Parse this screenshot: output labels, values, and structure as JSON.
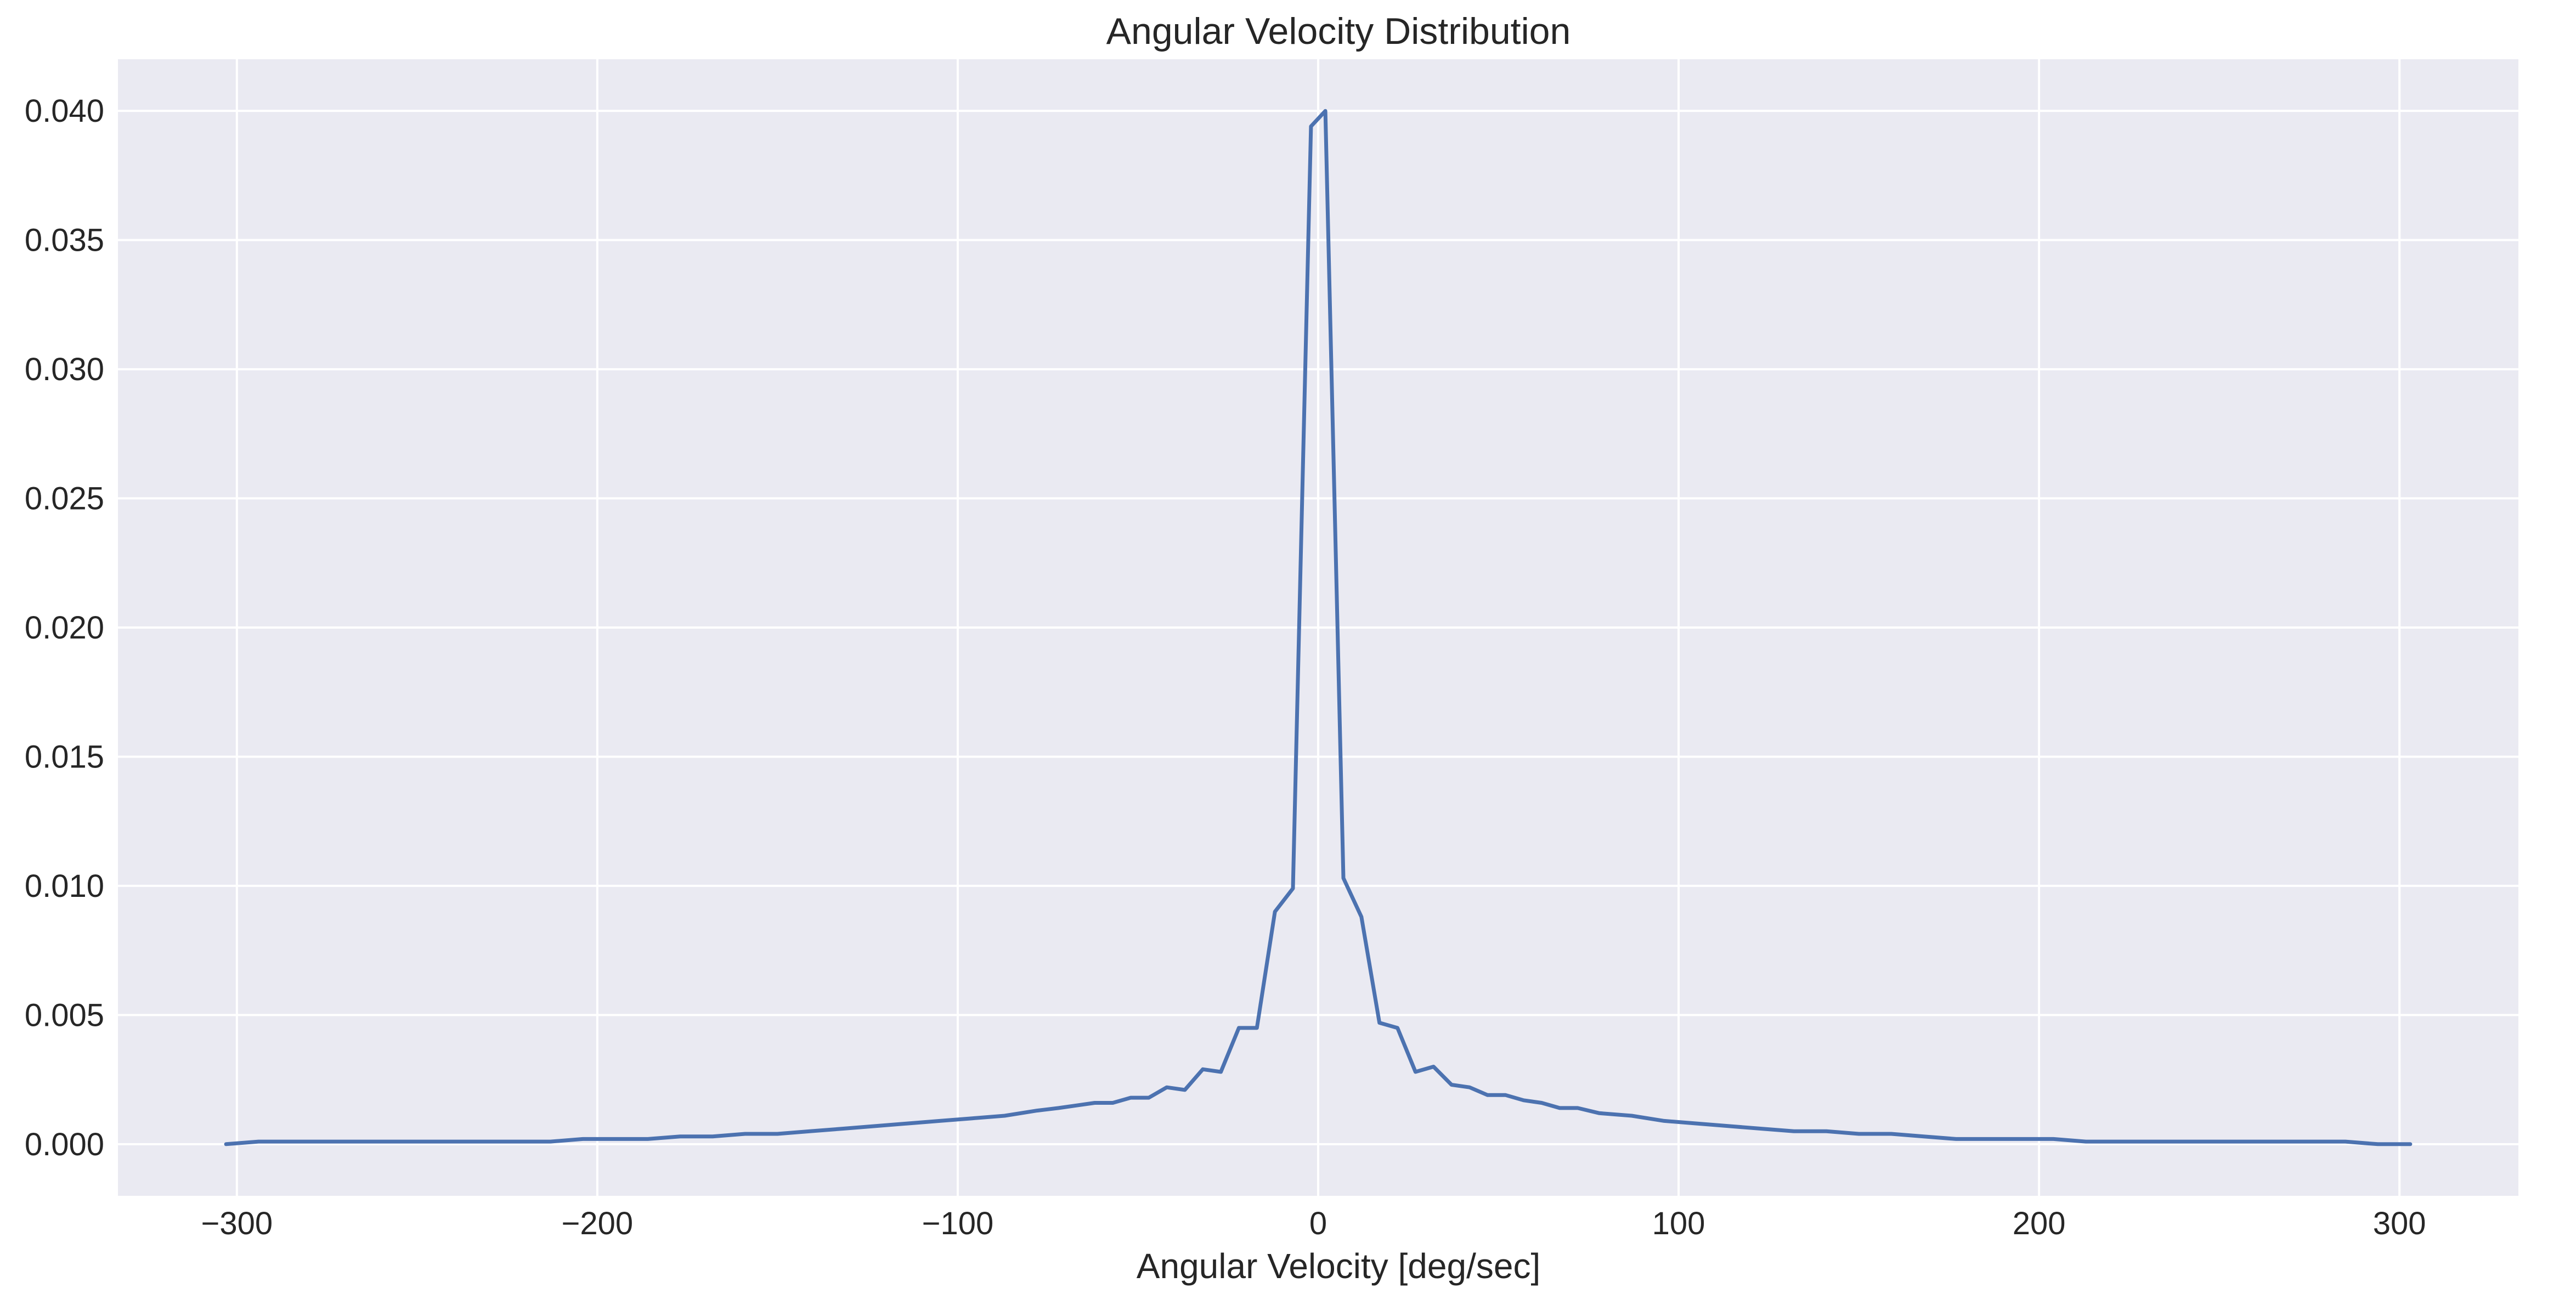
{
  "chart_data": {
    "type": "line",
    "title": "Angular Velocity Distribution",
    "xlabel": "Angular Velocity [deg/sec]",
    "ylabel": "",
    "xlim": [
      -333,
      333
    ],
    "ylim": [
      -0.002,
      0.042
    ],
    "xticks": [
      -300,
      -200,
      -100,
      0,
      100,
      200,
      300
    ],
    "xtick_labels": [
      "−300",
      "−200",
      "−100",
      "0",
      "100",
      "200",
      "300"
    ],
    "yticks": [
      0.0,
      0.005,
      0.01,
      0.015,
      0.02,
      0.025,
      0.03,
      0.035,
      0.04
    ],
    "ytick_labels": [
      "0.000",
      "0.005",
      "0.010",
      "0.015",
      "0.020",
      "0.025",
      "0.030",
      "0.035",
      "0.040"
    ],
    "grid": true,
    "background": "#eaeaf2",
    "series": [
      {
        "color": "#4c72b0",
        "x": [
          -303,
          -294,
          -285,
          -276,
          -267,
          -258,
          -249,
          -240,
          -231,
          -222,
          -213,
          -204,
          -195,
          -186,
          -177,
          -168,
          -159,
          -150,
          -141,
          -132,
          -123,
          -114,
          -105,
          -96,
          -87,
          -78,
          -72,
          -67,
          -62,
          -57,
          -52,
          -47,
          -42,
          -37,
          -32,
          -27,
          -22,
          -17,
          -12,
          -7,
          -2,
          2,
          7,
          12,
          17,
          22,
          27,
          32,
          37,
          42,
          47,
          52,
          57,
          62,
          67,
          72,
          78,
          87,
          96,
          105,
          114,
          123,
          132,
          141,
          150,
          159,
          168,
          177,
          186,
          195,
          204,
          213,
          222,
          231,
          240,
          249,
          258,
          267,
          276,
          285,
          294,
          303
        ],
        "y": [
          0.0,
          0.0001,
          0.0001,
          0.0001,
          0.0001,
          0.0001,
          0.0001,
          0.0001,
          0.0001,
          0.0001,
          0.0001,
          0.0002,
          0.0002,
          0.0002,
          0.0003,
          0.0003,
          0.0004,
          0.0004,
          0.0005,
          0.0006,
          0.0007,
          0.0008,
          0.0009,
          0.001,
          0.0011,
          0.0013,
          0.0014,
          0.0015,
          0.0016,
          0.0016,
          0.0018,
          0.0018,
          0.0022,
          0.0021,
          0.0029,
          0.0028,
          0.0045,
          0.0045,
          0.009,
          0.0099,
          0.0394,
          0.04,
          0.0103,
          0.0088,
          0.0047,
          0.0045,
          0.0028,
          0.003,
          0.0023,
          0.0022,
          0.0019,
          0.0019,
          0.0017,
          0.0016,
          0.0014,
          0.0014,
          0.0012,
          0.0011,
          0.0009,
          0.0008,
          0.0007,
          0.0006,
          0.0005,
          0.0005,
          0.0004,
          0.0004,
          0.0003,
          0.0002,
          0.0002,
          0.0002,
          0.0002,
          0.0001,
          0.0001,
          0.0001,
          0.0001,
          0.0001,
          0.0001,
          0.0001,
          0.0001,
          0.0001,
          0.0,
          0.0
        ]
      }
    ]
  }
}
